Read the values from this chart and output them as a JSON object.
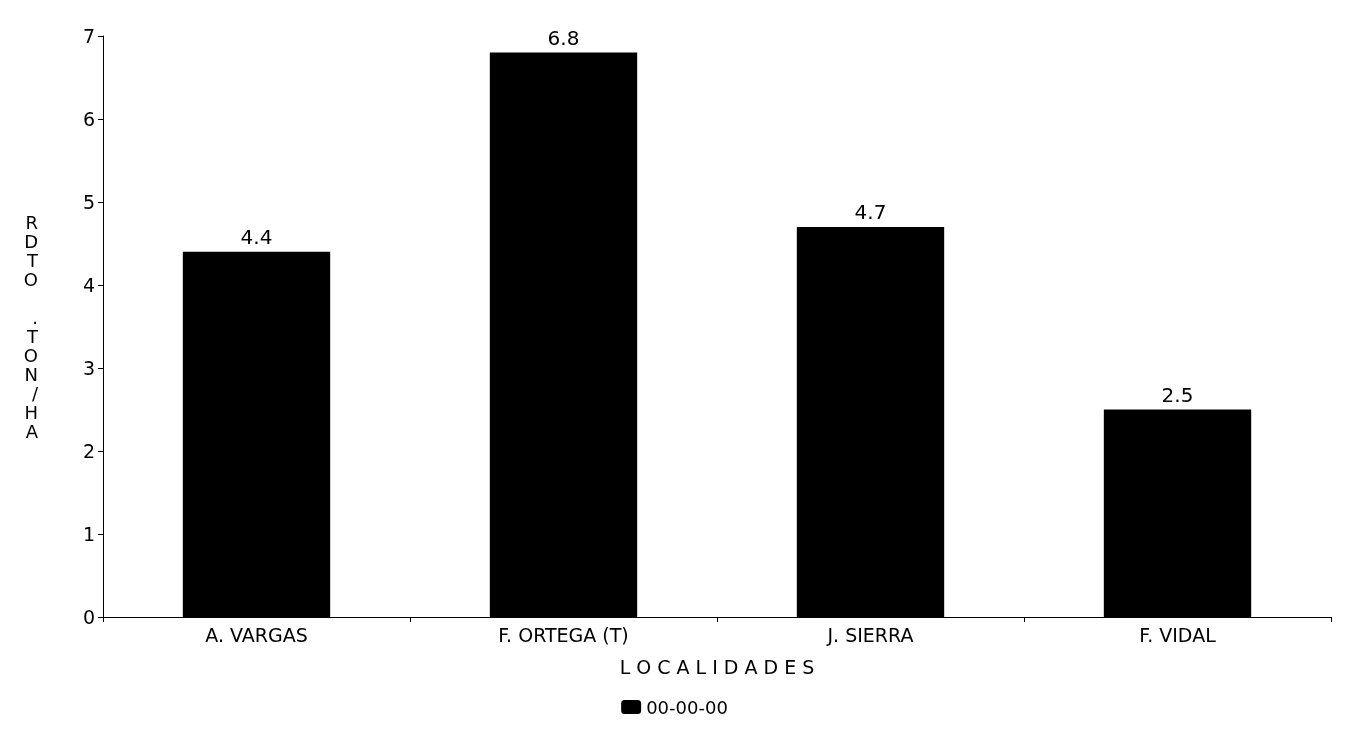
{
  "chart_data": {
    "type": "bar",
    "xlabel": "L O C A L I D A D E S",
    "ylabel": "RDTO .TON/HA",
    "categories": [
      "A. VARGAS",
      "F. ORTEGA (T)",
      "J. SIERRA",
      "F. VIDAL"
    ],
    "series": [
      {
        "name": "00-00-00",
        "color": "#000000",
        "values": [
          4.4,
          6.8,
          4.7,
          2.5
        ]
      }
    ],
    "ylim": [
      0,
      7
    ],
    "yticks": [
      0,
      1,
      2,
      3,
      4,
      5,
      6,
      7
    ],
    "data_labels": true,
    "grid": false,
    "legend": "bottom"
  }
}
